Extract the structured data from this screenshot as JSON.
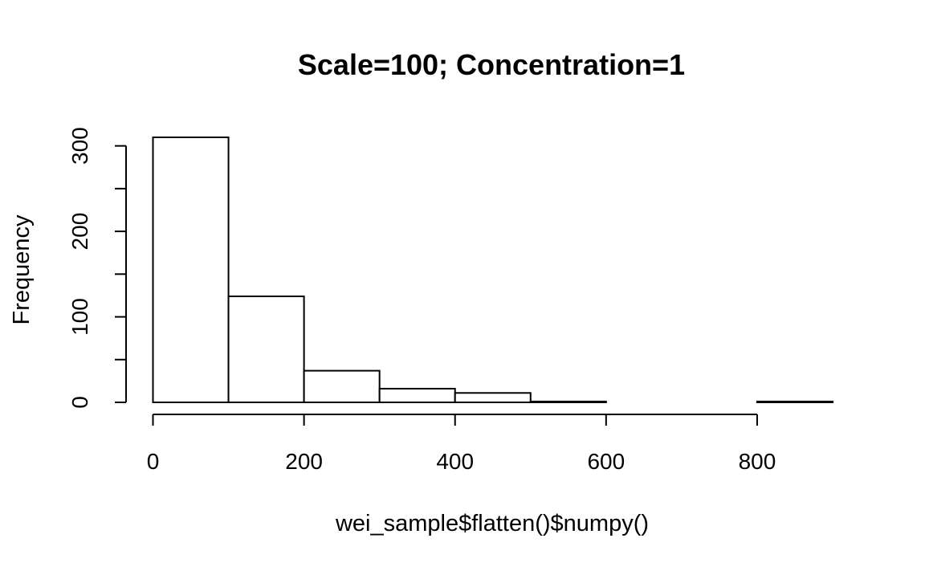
{
  "chart_data": {
    "type": "bar",
    "title": "Scale=100; Concentration=1",
    "xlabel": "wei_sample$flatten()$numpy()",
    "ylabel": "Frequency",
    "bins": [
      {
        "start": 0,
        "end": 100,
        "count": 310
      },
      {
        "start": 100,
        "end": 200,
        "count": 124
      },
      {
        "start": 200,
        "end": 300,
        "count": 37
      },
      {
        "start": 300,
        "end": 400,
        "count": 16
      },
      {
        "start": 400,
        "end": 500,
        "count": 11
      },
      {
        "start": 500,
        "end": 600,
        "count": 1
      },
      {
        "start": 600,
        "end": 700,
        "count": 0
      },
      {
        "start": 700,
        "end": 800,
        "count": 0
      },
      {
        "start": 800,
        "end": 900,
        "count": 1
      }
    ],
    "xlim": [
      0,
      900
    ],
    "ylim": [
      0,
      310
    ],
    "xticks": [
      0,
      200,
      400,
      600,
      800
    ],
    "xtick_labels": [
      "0",
      "200",
      "400",
      "600",
      "800"
    ],
    "yticks": [
      0,
      50,
      100,
      150,
      200,
      250,
      300
    ],
    "ytick_labels": [
      "0",
      "",
      "100",
      "",
      "200",
      "",
      "300"
    ],
    "grid": false,
    "legend": "none"
  }
}
